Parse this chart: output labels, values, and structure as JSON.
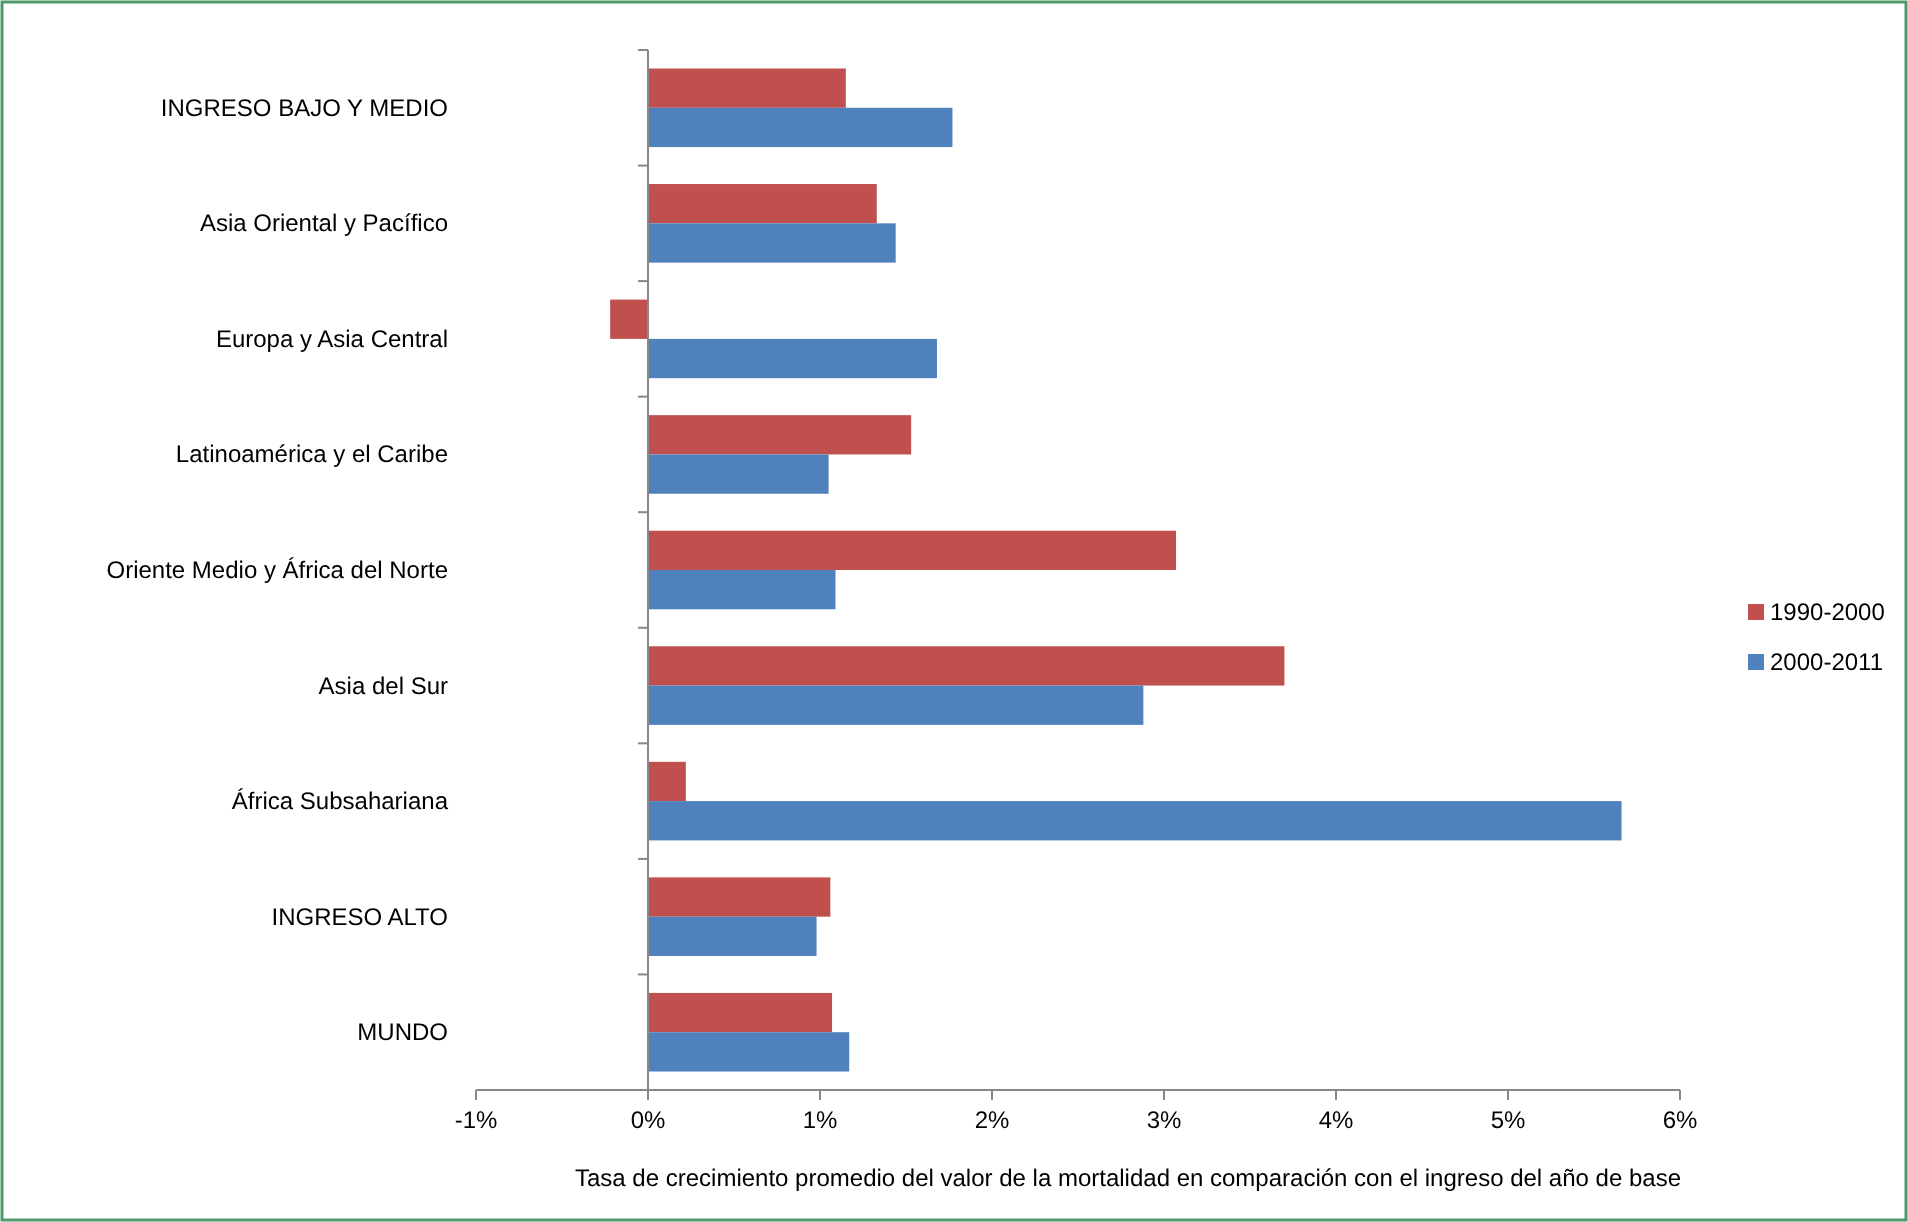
{
  "chart_data": {
    "type": "bar",
    "orientation": "horizontal",
    "xlabel": "Tasa de crecimiento promedio del valor de la mortalidad en comparación con el ingreso del año de base",
    "categories": [
      "INGRESO BAJO Y MEDIO",
      "Asia Oriental y Pacífico",
      "Europa y Asia Central",
      "Latinoamérica y el Caribe",
      "Oriente Medio y África del Norte",
      "Asia del Sur",
      "África Subsahariana",
      "INGRESO ALTO",
      "MUNDO"
    ],
    "series": [
      {
        "name": "1990-2000",
        "color": "#c0504d",
        "values": [
          1.15,
          1.33,
          -0.22,
          1.53,
          3.07,
          3.7,
          0.22,
          1.06,
          1.07
        ]
      },
      {
        "name": "2000-2011",
        "color": "#4f81bd",
        "values": [
          1.77,
          1.44,
          1.68,
          1.05,
          1.09,
          2.88,
          5.66,
          0.98,
          1.17
        ]
      }
    ],
    "xlim": [
      -1,
      6
    ],
    "xticks": [
      {
        "value": -1,
        "label": "-1%"
      },
      {
        "value": 0,
        "label": "0%"
      },
      {
        "value": 1,
        "label": "1%"
      },
      {
        "value": 2,
        "label": "2%"
      },
      {
        "value": 3,
        "label": "3%"
      },
      {
        "value": 4,
        "label": "4%"
      },
      {
        "value": 5,
        "label": "5%"
      },
      {
        "value": 6,
        "label": "6%"
      }
    ],
    "legend": "right"
  }
}
